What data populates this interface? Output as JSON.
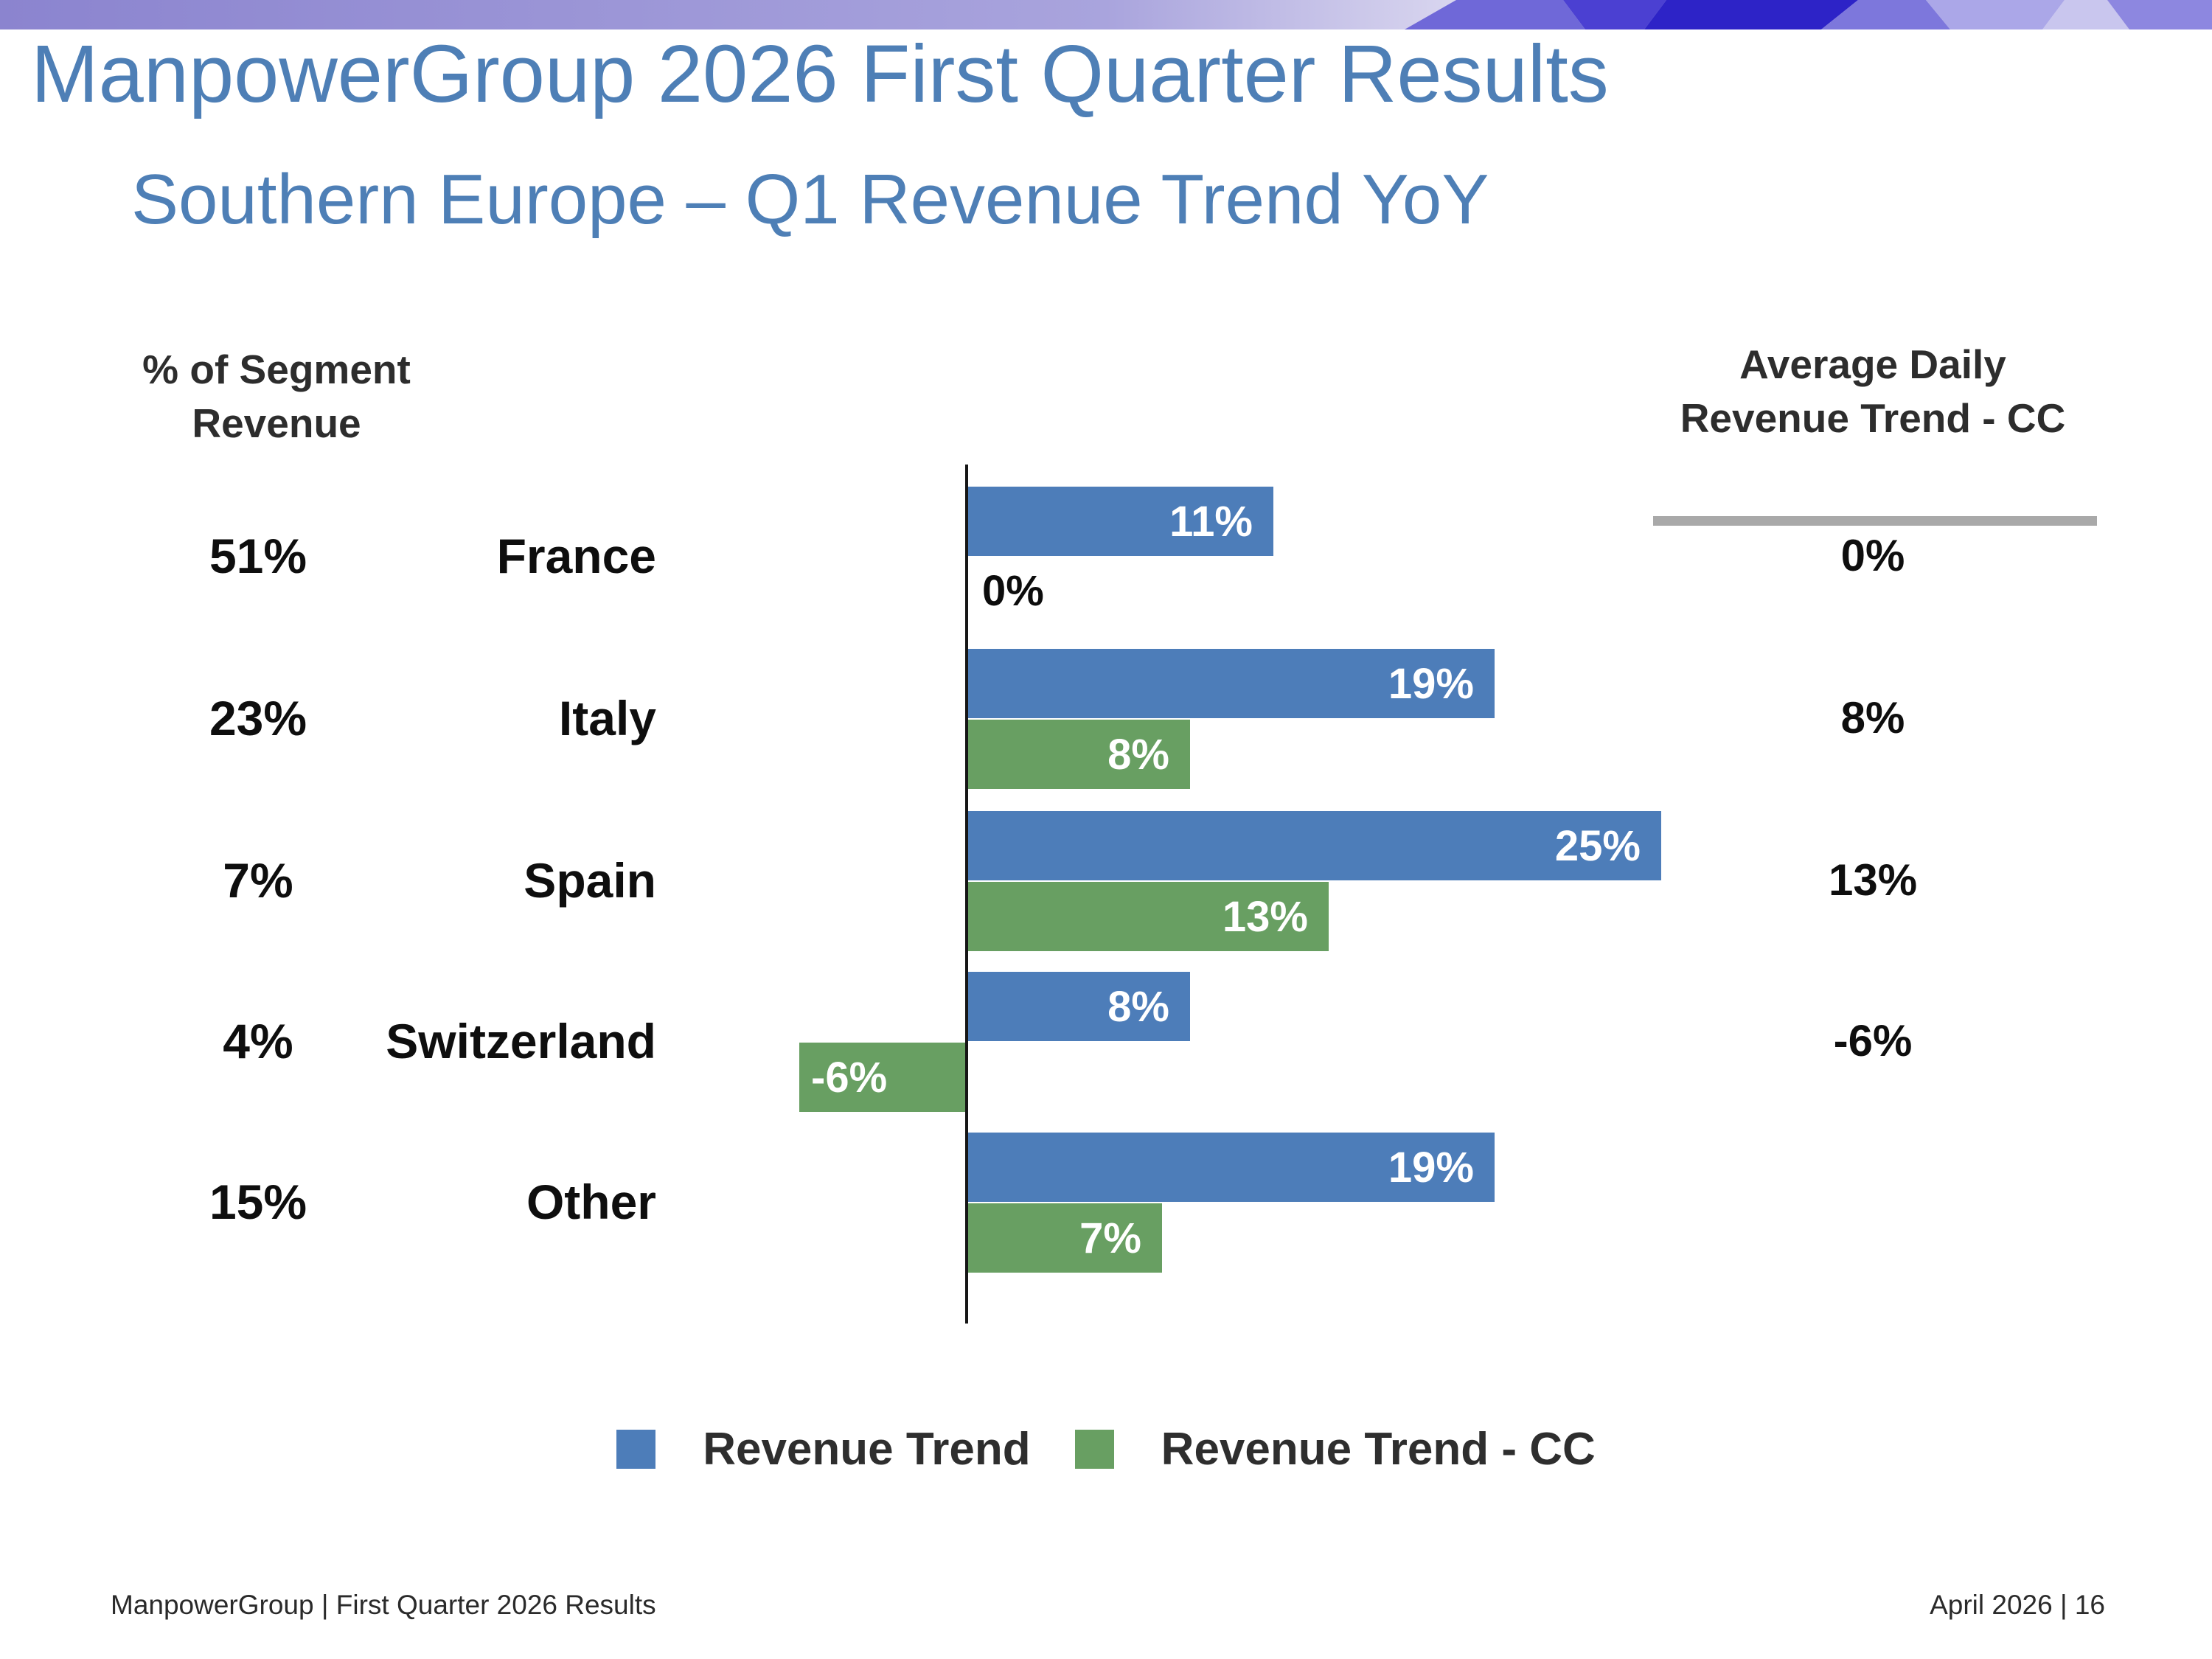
{
  "header": {
    "title": "ManpowerGroup 2026 First Quarter Results",
    "subtitle": "Southern Europe – Q1 Revenue Trend YoY"
  },
  "columns": {
    "left": {
      "line1": "% of Segment",
      "line2": "Revenue"
    },
    "right": {
      "line1": "Average Daily",
      "line2": "Revenue Trend - CC"
    }
  },
  "legend": {
    "items": [
      {
        "label": "Revenue Trend",
        "color": "#4d7db9"
      },
      {
        "label": "Revenue Trend - CC",
        "color": "#689f62"
      }
    ]
  },
  "footer": {
    "left": "ManpowerGroup  |  First Quarter 2026 Results",
    "right": "April 2026   |   16"
  },
  "colors": {
    "title_blue": "#4e7fb6",
    "bar_blue": "#4d7db9",
    "bar_green": "#689f62",
    "underline_gray": "#a9a9a9",
    "axis_black": "#161616",
    "banner_gradient": [
      "#8b84cf",
      "#a9a4dd",
      "#d9d6ef"
    ],
    "banner_shapes": [
      "#6f68d8",
      "#4b40d2",
      "#2d23c7",
      "#7d77dc",
      "#aba7e8",
      "#c9c6ee",
      "#8d87e0"
    ]
  },
  "chart_data": {
    "type": "bar",
    "orientation": "horizontal",
    "title": "Southern Europe – Q1 Revenue Trend YoY",
    "categories": [
      "France",
      "Italy",
      "Spain",
      "Switzerland",
      "Other"
    ],
    "segment_revenue_pct": [
      51,
      23,
      7,
      4,
      15
    ],
    "series": [
      {
        "name": "Revenue Trend",
        "color": "#4d7db9",
        "values": [
          11,
          19,
          25,
          8,
          19
        ]
      },
      {
        "name": "Revenue Trend - CC",
        "color": "#689f62",
        "values": [
          0,
          8,
          13,
          -6,
          7
        ]
      }
    ],
    "avg_daily_revenue_trend_cc": [
      "0%",
      "8%",
      "13%",
      "-6%",
      null
    ],
    "value_suffix": "%",
    "xlim": [
      -6,
      25
    ],
    "zero_axis_line": true,
    "grid": false,
    "legend_position": "bottom"
  }
}
